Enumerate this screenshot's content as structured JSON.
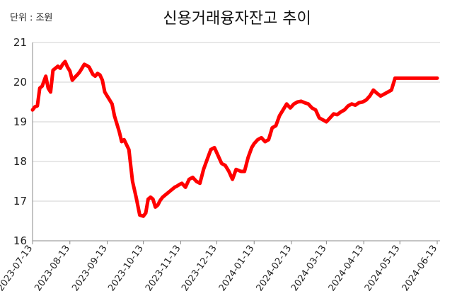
{
  "chart_data": {
    "type": "line",
    "title": "신용거래융자잔고 추이",
    "unit_label": "단위 : 조원",
    "xlabel": "",
    "ylabel": "",
    "ylim": [
      16,
      21
    ],
    "yticks": [
      "16",
      "17",
      "18",
      "19",
      "20",
      "21"
    ],
    "xticks": [
      "2023-07-13",
      "2023-08-13",
      "2023-09-13",
      "2023-10-13",
      "2023-11-13",
      "2023-12-13",
      "2024-01-13",
      "2024-02-13",
      "2024-03-13",
      "2024-04-13",
      "2024-05-13",
      "2024-06-13"
    ],
    "grid": "horizontal",
    "line_color": "#ff0000",
    "series": [
      {
        "x": [
          "2023-07-13",
          "2023-07-15",
          "2023-07-17",
          "2023-07-19",
          "2023-07-21",
          "2023-07-24",
          "2023-07-26",
          "2023-07-28",
          "2023-07-30",
          "2023-08-01",
          "2023-08-03",
          "2023-08-05",
          "2023-08-07",
          "2023-08-09",
          "2023-08-11",
          "2023-08-13",
          "2023-08-15",
          "2023-08-17",
          "2023-08-19",
          "2023-08-21",
          "2023-08-23",
          "2023-08-25",
          "2023-08-27",
          "2023-08-29",
          "2023-09-01",
          "2023-09-03",
          "2023-09-05",
          "2023-09-07",
          "2023-09-09",
          "2023-09-11",
          "2023-09-13",
          "2023-09-15",
          "2023-09-17",
          "2023-09-19",
          "2023-09-21",
          "2023-09-23",
          "2023-09-25",
          "2023-09-27",
          "2023-10-01",
          "2023-10-04",
          "2023-10-07",
          "2023-10-10",
          "2023-10-13",
          "2023-10-15",
          "2023-10-17",
          "2023-10-19",
          "2023-10-21",
          "2023-10-23",
          "2023-10-25",
          "2023-10-27",
          "2023-10-29",
          "2023-10-31",
          "2023-11-02",
          "2023-11-04",
          "2023-11-06",
          "2023-11-08",
          "2023-11-10",
          "2023-11-12",
          "2023-11-14",
          "2023-11-17",
          "2023-11-20",
          "2023-11-23",
          "2023-11-26",
          "2023-11-29",
          "2023-12-02",
          "2023-12-05",
          "2023-12-08",
          "2023-12-11",
          "2023-12-14",
          "2023-12-17",
          "2023-12-20",
          "2023-12-23",
          "2023-12-26",
          "2023-12-29",
          "2024-01-02",
          "2024-01-05",
          "2024-01-08",
          "2024-01-11",
          "2024-01-13",
          "2024-01-16",
          "2024-01-19",
          "2024-01-22",
          "2024-01-25",
          "2024-01-28",
          "2024-01-31",
          "2024-02-03",
          "2024-02-06",
          "2024-02-09",
          "2024-02-12",
          "2024-02-15",
          "2024-02-18",
          "2024-02-21",
          "2024-02-24",
          "2024-02-27",
          "2024-03-01",
          "2024-03-04",
          "2024-03-07",
          "2024-03-10",
          "2024-03-13",
          "2024-03-16",
          "2024-03-19",
          "2024-03-22",
          "2024-03-25",
          "2024-03-28",
          "2024-03-31",
          "2024-04-03",
          "2024-04-06",
          "2024-04-09",
          "2024-04-12",
          "2024-04-15",
          "2024-04-18",
          "2024-04-21",
          "2024-04-24",
          "2024-04-27",
          "2024-04-30",
          "2024-05-03",
          "2024-05-06",
          "2024-05-09",
          "2024-05-12",
          "2024-05-15",
          "2024-05-18",
          "2024-05-21",
          "2024-05-24",
          "2024-05-27",
          "2024-05-30",
          "2024-06-02",
          "2024-06-05",
          "2024-06-08",
          "2024-06-11",
          "2024-06-13"
        ],
        "values": [
          19.3,
          19.38,
          19.4,
          19.85,
          19.9,
          20.15,
          19.85,
          19.75,
          20.3,
          20.35,
          20.4,
          20.35,
          20.45,
          20.52,
          20.38,
          20.28,
          20.05,
          20.12,
          20.18,
          20.25,
          20.35,
          20.45,
          20.42,
          20.38,
          20.2,
          20.15,
          20.22,
          20.18,
          20.05,
          19.75,
          19.65,
          19.55,
          19.45,
          19.15,
          18.95,
          18.75,
          18.5,
          18.55,
          18.3,
          17.5,
          17.1,
          16.65,
          16.62,
          16.7,
          17.05,
          17.1,
          17.05,
          16.85,
          16.9,
          17.02,
          17.1,
          17.15,
          17.2,
          17.25,
          17.3,
          17.35,
          17.38,
          17.42,
          17.45,
          17.35,
          17.55,
          17.6,
          17.5,
          17.45,
          17.8,
          18.05,
          18.3,
          18.35,
          18.15,
          17.95,
          17.9,
          17.75,
          17.55,
          17.8,
          17.75,
          17.75,
          18.1,
          18.35,
          18.45,
          18.55,
          18.6,
          18.5,
          18.55,
          18.85,
          18.9,
          19.15,
          19.3,
          19.45,
          19.35,
          19.45,
          19.5,
          19.52,
          19.48,
          19.45,
          19.35,
          19.3,
          19.1,
          19.05,
          19.0,
          19.1,
          19.2,
          19.18,
          19.25,
          19.3,
          19.4,
          19.45,
          19.42,
          19.48,
          19.5,
          19.55,
          19.65,
          19.8,
          19.72,
          19.65,
          19.7,
          19.75,
          19.8,
          20.1,
          20.1,
          20.1,
          20.1,
          20.1,
          20.1,
          20.1,
          20.1,
          20.1,
          20.1,
          20.1,
          20.1,
          20.1
        ]
      }
    ]
  }
}
